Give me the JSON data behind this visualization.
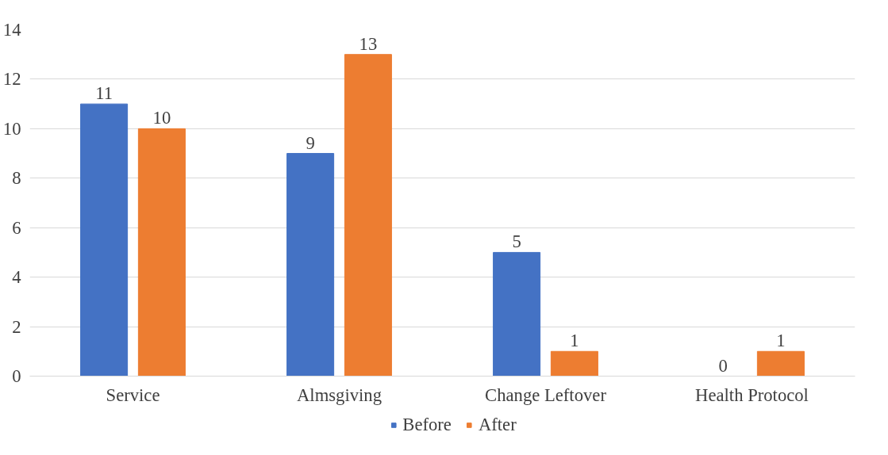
{
  "chart_data": {
    "type": "bar",
    "categories": [
      "Service",
      "Almsgiving",
      "Change Leftover",
      "Health Protocol"
    ],
    "series": [
      {
        "name": "Before",
        "color": "#4472c4",
        "values": [
          11,
          9,
          5,
          0
        ]
      },
      {
        "name": "After",
        "color": "#ed7d31",
        "values": [
          10,
          13,
          1,
          1
        ]
      }
    ],
    "ylim": [
      0,
      14
    ],
    "yticks": [
      0,
      2,
      4,
      6,
      8,
      10,
      12,
      14
    ],
    "grid": "y",
    "legend": "bottom",
    "data_labels": true
  }
}
